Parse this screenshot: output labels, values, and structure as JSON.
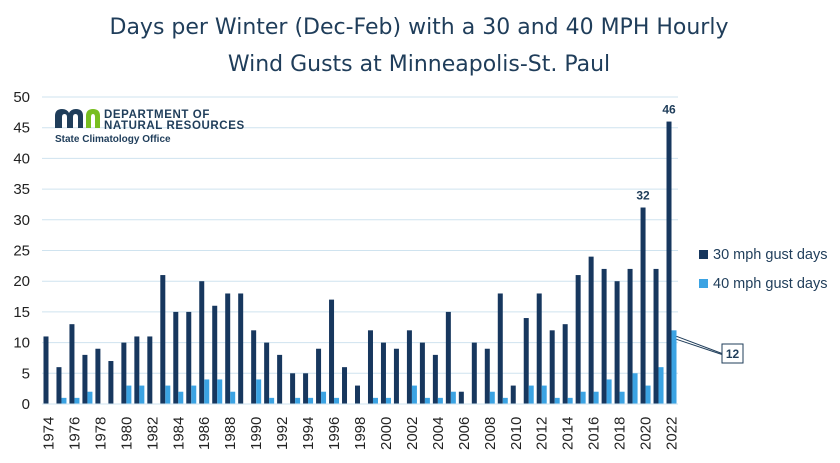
{
  "chart_data": {
    "type": "bar",
    "title_line1": "Days per Winter (Dec-Feb) with a 30 and 40 MPH Hourly",
    "title_line2": "Wind Gusts at Minneapolis-St. Paul",
    "xlabel": "",
    "ylabel": "",
    "ylim": [
      0,
      50
    ],
    "yticks": [
      0,
      5,
      10,
      15,
      20,
      25,
      30,
      35,
      40,
      45,
      50
    ],
    "grid": true,
    "legend_position": "right",
    "years": [
      1974,
      1975,
      1976,
      1977,
      1978,
      1979,
      1980,
      1981,
      1982,
      1983,
      1984,
      1985,
      1986,
      1987,
      1988,
      1989,
      1990,
      1991,
      1992,
      1993,
      1994,
      1995,
      1996,
      1997,
      1998,
      1999,
      2000,
      2001,
      2002,
      2003,
      2004,
      2005,
      2006,
      2007,
      2008,
      2009,
      2010,
      2011,
      2012,
      2013,
      2014,
      2015,
      2016,
      2017,
      2018,
      2019,
      2020,
      2021,
      2022
    ],
    "series": [
      {
        "name": "30 mph gust days",
        "color": "#17375e",
        "values": [
          11,
          6,
          13,
          8,
          9,
          7,
          10,
          11,
          11,
          21,
          15,
          15,
          20,
          16,
          18,
          18,
          12,
          10,
          8,
          5,
          5,
          9,
          17,
          6,
          3,
          12,
          10,
          9,
          12,
          10,
          8,
          15,
          2,
          10,
          9,
          18,
          3,
          14,
          18,
          12,
          13,
          21,
          24,
          22,
          20,
          22,
          32,
          22,
          46
        ]
      },
      {
        "name": "40 mph gust days",
        "color": "#3ba3e3",
        "values": [
          0,
          1,
          1,
          2,
          0,
          0,
          3,
          3,
          0,
          3,
          2,
          3,
          4,
          4,
          2,
          0,
          4,
          1,
          0,
          1,
          1,
          2,
          1,
          0,
          0,
          1,
          1,
          0,
          3,
          1,
          1,
          2,
          0,
          0,
          2,
          1,
          0,
          3,
          3,
          1,
          1,
          2,
          2,
          4,
          2,
          5,
          3,
          6,
          12
        ]
      }
    ],
    "data_labels": [
      {
        "series": 0,
        "year": 2020,
        "text": "32"
      },
      {
        "series": 0,
        "year": 2022,
        "text": "46"
      },
      {
        "series": 1,
        "year": 2022,
        "text": "12"
      }
    ]
  },
  "logo": {
    "monogram": "mn",
    "line1": "DEPARTMENT OF",
    "line2": "NATURAL RESOURCES",
    "line3": "State Climatology Office",
    "blue": "#1f3d5a",
    "green": "#78be20"
  }
}
